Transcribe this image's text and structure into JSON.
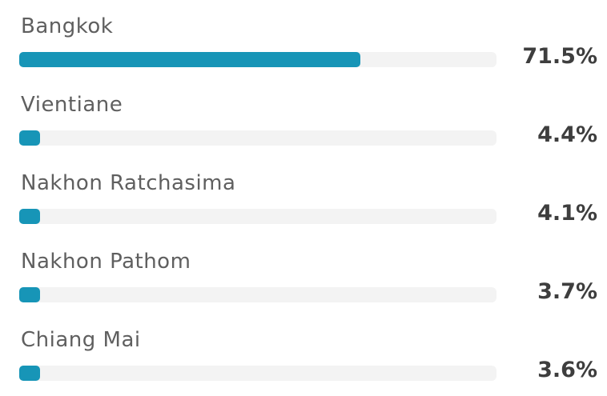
{
  "chart_data": {
    "type": "bar",
    "orientation": "horizontal",
    "categories": [
      "Bangkok",
      "Vientiane",
      "Nakhon Ratchasima",
      "Nakhon Pathom",
      "Chiang Mai"
    ],
    "values": [
      71.5,
      4.4,
      4.1,
      3.7,
      3.6
    ],
    "value_labels": [
      "71.5%",
      "4.4%",
      "4.1%",
      "3.7%",
      "3.6%"
    ],
    "unit": "%",
    "xlim": [
      0,
      100
    ],
    "grid": false,
    "legend": "none",
    "bar_color": "#1795b7",
    "track_color": "#f3f3f3"
  }
}
